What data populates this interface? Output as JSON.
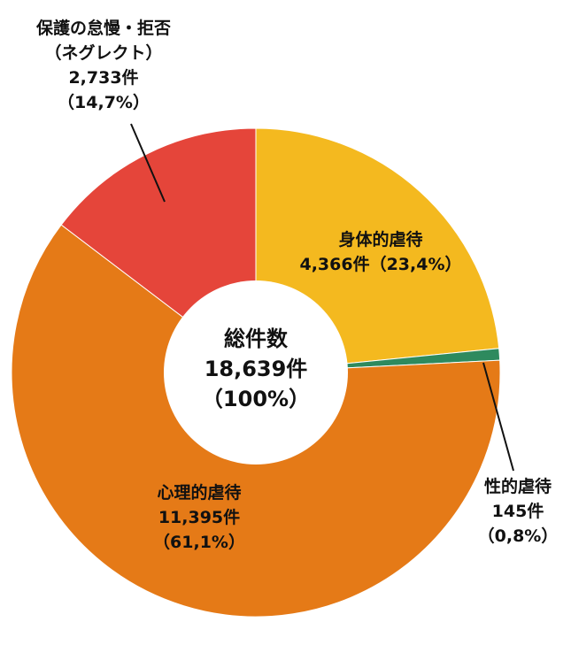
{
  "chart_data": {
    "type": "pie",
    "style": "donut",
    "center": {
      "title": "総件数",
      "total": "18,639件",
      "percent": "（100%）"
    },
    "slices": [
      {
        "category": "身体的虐待",
        "count_text": "4,366件（23,4%）",
        "value": 4366,
        "percent": 23.4,
        "color": "#f4b91f"
      },
      {
        "category": "性的虐待",
        "count_text": "145件",
        "percent_text": "（0,8%）",
        "value": 145,
        "percent": 0.8,
        "color": "#2e8a5e"
      },
      {
        "category": "心理的虐待",
        "count_text": "11,395件",
        "percent_text": "（61,1%）",
        "value": 11395,
        "percent": 61.1,
        "color": "#e57a17"
      },
      {
        "category_line1": "保護の怠慢・拒否",
        "category_line2": "（ネグレクト）",
        "count_text": "2,733件",
        "percent_text": "（14,7%）",
        "value": 2733,
        "percent": 14.7,
        "color": "#e5453a"
      }
    ]
  }
}
